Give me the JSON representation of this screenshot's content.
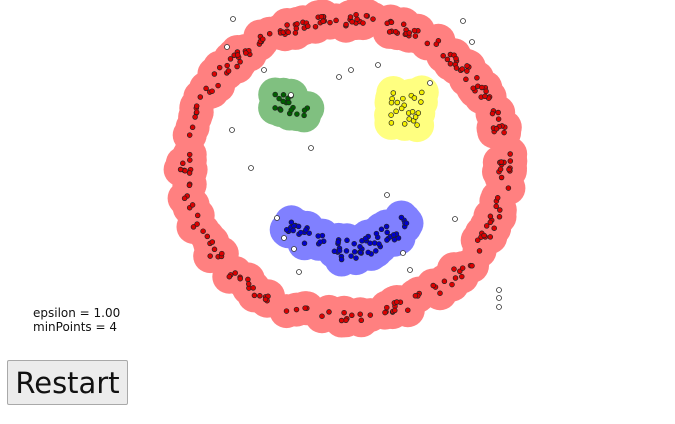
{
  "params": {
    "epsilon_text": "epsilon = 1.00",
    "min_points_text": "minPoints = 4"
  },
  "controls": {
    "restart_label": "Restart"
  },
  "clusters": [
    {
      "name": "ring",
      "halo_color": "#ff8080",
      "point_color": "#dd0000"
    },
    {
      "name": "left-eye",
      "halo_color": "#80c080",
      "point_color": "#006000"
    },
    {
      "name": "right-eye",
      "halo_color": "#ffff80",
      "point_color": "#f4f000"
    },
    {
      "name": "mouth",
      "halo_color": "#8080ff",
      "point_color": "#0000cc"
    }
  ],
  "noise_color": "#ffffff"
}
